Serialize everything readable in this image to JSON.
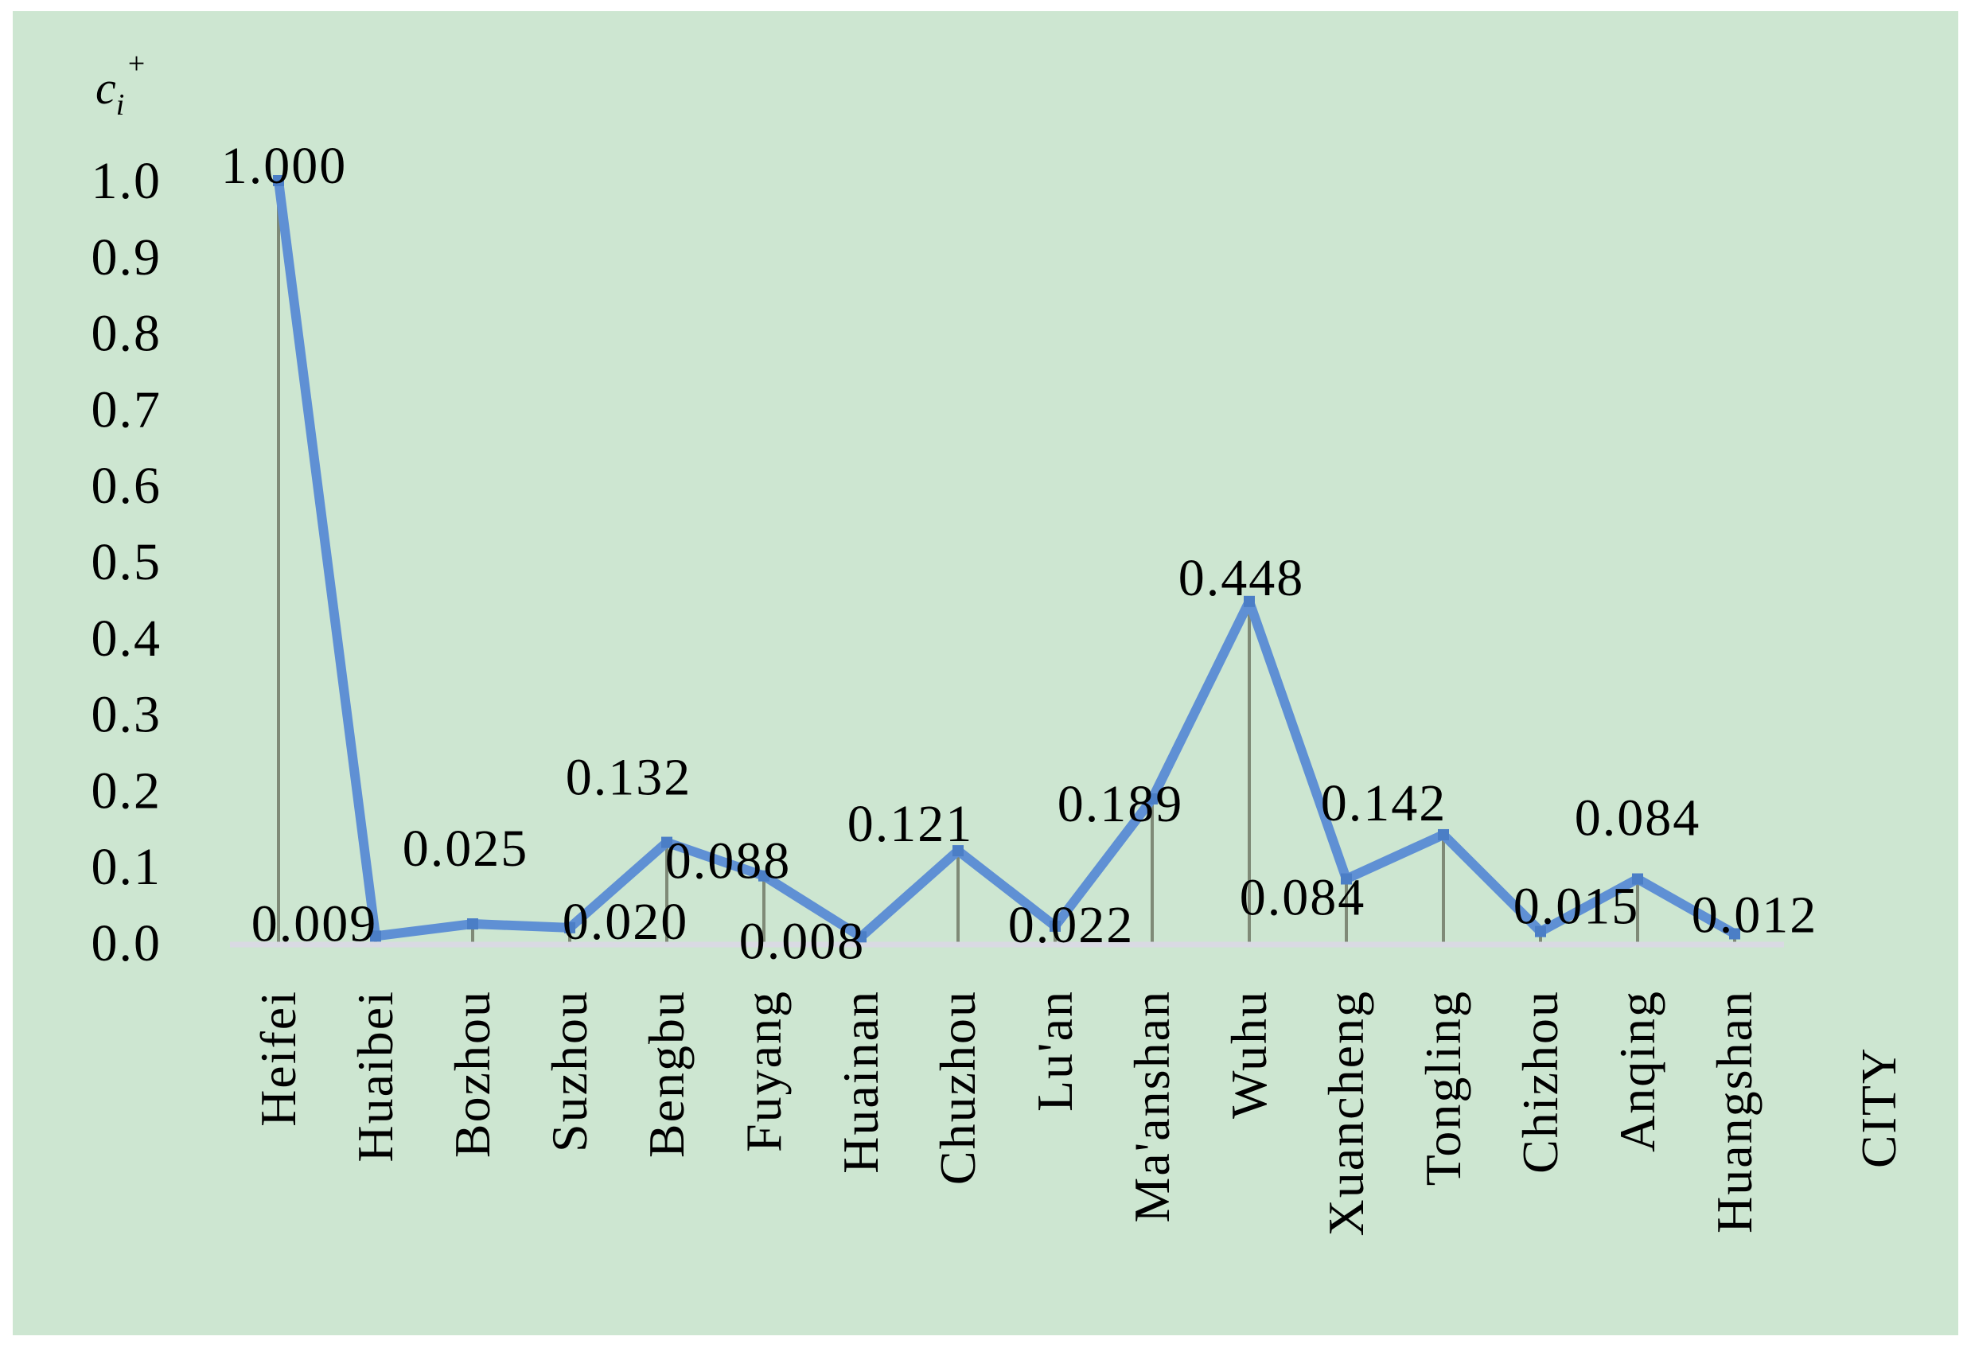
{
  "figure": {
    "outer_bg": "#ffffff",
    "panel_bg": "#cde6d1"
  },
  "chart_data": {
    "type": "line",
    "title": "",
    "xlabel": "CITY",
    "ylabel": {
      "base": "c",
      "sub": "i",
      "sup": "+"
    },
    "categories": [
      "Heifei",
      "Huaibei",
      "Bozhou",
      "Suzhou",
      "Bengbu",
      "Fuyang",
      "Huainan",
      "Chuzhou",
      "Lu'an",
      "Ma'anshan",
      "Wuhu",
      "Xuancheng",
      "Tongling",
      "Chizhou",
      "Anqing",
      "Huangshan"
    ],
    "series": [
      {
        "name": "ci_plus",
        "values": [
          1.0,
          0.009,
          0.025,
          0.02,
          0.132,
          0.088,
          0.008,
          0.121,
          0.022,
          0.189,
          0.448,
          0.084,
          0.142,
          0.015,
          0.084,
          0.012
        ]
      }
    ],
    "point_labels": [
      "1.000",
      "0.009",
      "0.025",
      "0.020",
      "0.132",
      "0.088",
      "0.008",
      "0.121",
      "0.022",
      "0.189",
      "0.448",
      "0.084",
      "0.142",
      "0.015",
      "0.084",
      "0.012"
    ],
    "y_ticks": [
      "0.0",
      "0.1",
      "0.2",
      "0.3",
      "0.4",
      "0.5",
      "0.6",
      "0.7",
      "0.8",
      "0.9",
      "1.0"
    ],
    "ylim": [
      0,
      1
    ],
    "grid": false,
    "legend": "none",
    "droplines": true,
    "colors": {
      "line": "#5f90d4",
      "marker": "#4b7ec6",
      "dropline": "#7f8a77",
      "axis_line": "#d9dae3",
      "text": "#000000"
    }
  }
}
